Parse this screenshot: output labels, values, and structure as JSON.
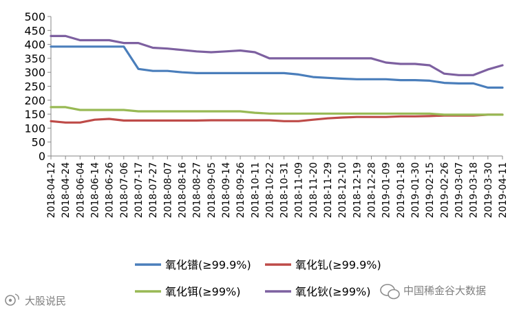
{
  "chart_data": {
    "type": "line",
    "title": "",
    "xlabel": "",
    "ylabel": "",
    "ylim": [
      0,
      500
    ],
    "yticks": [
      0,
      50,
      100,
      150,
      200,
      250,
      300,
      350,
      400,
      450,
      500
    ],
    "grid": false,
    "legend_position": "bottom",
    "x": [
      "2018-04-12",
      "2018-04-24",
      "2018-06-04",
      "2018-06-14",
      "2018-06-26",
      "2018-07-06",
      "2018-07-17",
      "2018-07-27",
      "2018-08-07",
      "2018-08-16",
      "2018-08-27",
      "2018-09-05",
      "2018-09-14",
      "2018-09-26",
      "2018-10-11",
      "2018-10-22",
      "2018-10-31",
      "2018-11-09",
      "2018-11-20",
      "2018-11-29",
      "2018-12-10",
      "2018-12-19",
      "2018-12-28",
      "2019-01-09",
      "2019-01-18",
      "2019-01-30",
      "2019-02-15",
      "2019-02-26",
      "2019-03-07",
      "2019-03-18",
      "2019-03-30",
      "2019-04-11"
    ],
    "series": [
      {
        "name": "氧化镨(≥99.9%)",
        "color": "#4a7ebb",
        "values": [
          392,
          392,
          392,
          392,
          392,
          392,
          312,
          305,
          305,
          300,
          297,
          297,
          297,
          297,
          297,
          297,
          297,
          292,
          283,
          280,
          277,
          275,
          275,
          275,
          272,
          272,
          270,
          262,
          260,
          260,
          245,
          245
        ]
      },
      {
        "name": "氧化钆(≥99.9%)",
        "color": "#be4b48",
        "values": [
          125,
          120,
          120,
          130,
          133,
          127,
          127,
          127,
          127,
          127,
          127,
          128,
          128,
          128,
          128,
          128,
          125,
          125,
          130,
          135,
          138,
          140,
          140,
          140,
          142,
          142,
          143,
          145,
          145,
          145,
          148,
          148
        ]
      },
      {
        "name": "氧化铒(≥99%)",
        "color": "#98b954",
        "values": [
          175,
          175,
          165,
          165,
          165,
          165,
          160,
          160,
          160,
          160,
          160,
          160,
          160,
          160,
          155,
          152,
          152,
          152,
          152,
          152,
          152,
          152,
          152,
          152,
          152,
          152,
          152,
          148,
          148,
          148,
          148,
          148
        ]
      },
      {
        "name": "氧化钬(≥99%)",
        "color": "#7d60a0",
        "values": [
          430,
          430,
          415,
          415,
          415,
          405,
          405,
          388,
          385,
          380,
          375,
          372,
          375,
          378,
          372,
          350,
          350,
          350,
          350,
          350,
          350,
          350,
          350,
          335,
          330,
          330,
          325,
          295,
          290,
          290,
          310,
          325
        ]
      }
    ]
  },
  "watermark_left": "大股说民",
  "watermark_right": "中国稀金谷大数据"
}
